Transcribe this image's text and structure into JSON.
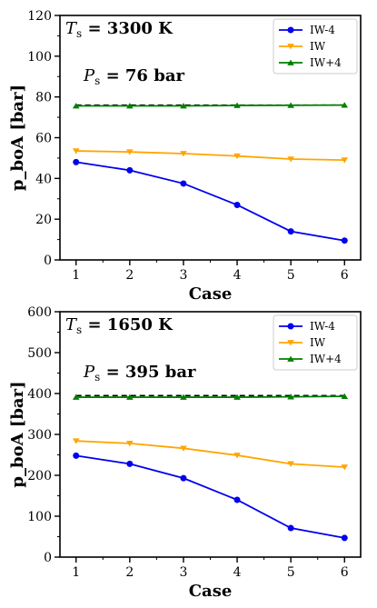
{
  "chart_data": [
    {
      "type": "line",
      "categories": [
        1,
        2,
        3,
        4,
        5,
        6
      ],
      "xlabel": "Case",
      "ylabel": "p_boA [bar]",
      "ylim": [
        0,
        120
      ],
      "yticks": [
        0,
        20,
        40,
        60,
        80,
        100,
        120
      ],
      "ts_annotation": {
        "symbol": "T",
        "sub": "s",
        "value": " = 3300 K"
      },
      "ps_annotation": {
        "symbol": "P",
        "sub": "s",
        "value": " = 76 bar"
      },
      "ps_value": 76,
      "legend_position": "top-right",
      "series": [
        {
          "name": "IW-4",
          "color": "#0000ee",
          "marker": "circle",
          "values": [
            48,
            44,
            37.5,
            27,
            14,
            9.5
          ]
        },
        {
          "name": "IW",
          "color": "#ffa500",
          "marker": "triangle-down",
          "values": [
            53.5,
            53,
            52.2,
            51,
            49.5,
            49
          ]
        },
        {
          "name": "IW+4",
          "color": "#008000",
          "marker": "triangle-up",
          "values": [
            75.6,
            75.6,
            75.6,
            75.8,
            75.9,
            76
          ]
        }
      ]
    },
    {
      "type": "line",
      "categories": [
        1,
        2,
        3,
        4,
        5,
        6
      ],
      "xlabel": "Case",
      "ylabel": "p_boA [bar]",
      "ylim": [
        0,
        600
      ],
      "yticks": [
        0,
        100,
        200,
        300,
        400,
        500,
        600
      ],
      "ts_annotation": {
        "symbol": "T",
        "sub": "s",
        "value": " = 1650 K"
      },
      "ps_annotation": {
        "symbol": "P",
        "sub": "s",
        "value": " = 395 bar"
      },
      "ps_value": 395,
      "legend_position": "top-right",
      "series": [
        {
          "name": "IW-4",
          "color": "#0000ee",
          "marker": "circle",
          "values": [
            248,
            228,
            193,
            140,
            71,
            47
          ]
        },
        {
          "name": "IW",
          "color": "#ffa500",
          "marker": "triangle-down",
          "values": [
            284,
            278,
            266,
            249,
            228,
            220
          ]
        },
        {
          "name": "IW+4",
          "color": "#008000",
          "marker": "triangle-up",
          "values": [
            391,
            391,
            391,
            391,
            392,
            393
          ]
        }
      ]
    }
  ]
}
